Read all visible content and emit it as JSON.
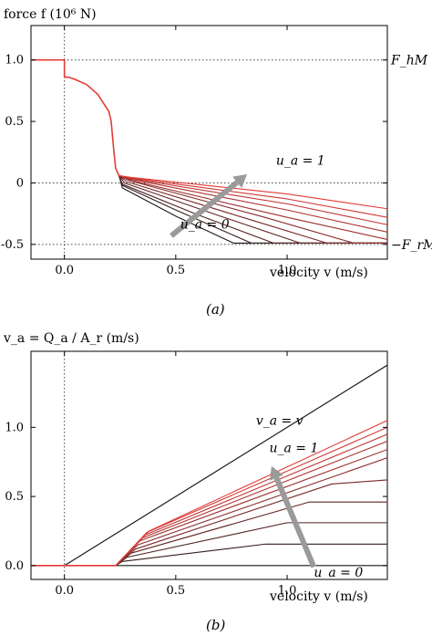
{
  "chart_data": [
    {
      "panel": "(a)",
      "type": "line",
      "ylabel": "force f (10⁶ N)",
      "xlabel": "velocity v (m/s)",
      "xlim": [
        -0.15,
        1.45
      ],
      "ylim": [
        -0.62,
        1.28
      ],
      "xticks": [
        0,
        0.5,
        1.0
      ],
      "xtick_labels": [
        "0.0",
        "0.5",
        "1.0"
      ],
      "yticks": [
        1.0,
        0.5,
        0,
        -0.5
      ],
      "ytick_labels": [
        "1.0",
        "0.5",
        "0",
        "-0.5"
      ],
      "right_labels": [
        {
          "text": "F_hM",
          "y": 1.0
        },
        {
          "text": "−F_rM",
          "y": -0.5
        }
      ],
      "reference_lines": {
        "horizontal": [
          1.0,
          0,
          -0.5
        ],
        "vertical": [
          0
        ]
      },
      "annotations": [
        {
          "text": "u_a = 1",
          "x": 0.95,
          "y": 0.15
        },
        {
          "text": "u_a = 0",
          "x": 0.52,
          "y": -0.37
        }
      ],
      "arrow": {
        "from": [
          0.48,
          -0.43
        ],
        "to": [
          0.82,
          0.07
        ]
      },
      "common_curve": {
        "x": [
          -0.15,
          0.0,
          0.0,
          0.02,
          0.05,
          0.1,
          0.15,
          0.2,
          0.21,
          0.22,
          0.23,
          0.245
        ],
        "y": [
          1.0,
          1.0,
          0.86,
          0.86,
          0.84,
          0.8,
          0.72,
          0.58,
          0.5,
          0.3,
          0.12,
          0.06
        ]
      },
      "family_curves": [
        {
          "x": [
            0.245,
            0.26,
            0.5,
            0.76,
            1.45
          ],
          "y": [
            0.06,
            -0.04,
            -0.27,
            -0.49,
            -0.49
          ]
        },
        {
          "x": [
            0.245,
            0.26,
            0.5,
            0.84,
            1.45
          ],
          "y": [
            0.06,
            -0.02,
            -0.22,
            -0.49,
            -0.49
          ]
        },
        {
          "x": [
            0.245,
            0.26,
            0.6,
            0.94,
            1.45
          ],
          "y": [
            0.06,
            -0.01,
            -0.26,
            -0.49,
            -0.49
          ]
        },
        {
          "x": [
            0.245,
            0.27,
            0.7,
            1.06,
            1.45
          ],
          "y": [
            0.06,
            0.0,
            -0.27,
            -0.49,
            -0.49
          ]
        },
        {
          "x": [
            0.245,
            0.28,
            0.8,
            1.18,
            1.45
          ],
          "y": [
            0.06,
            0.01,
            -0.28,
            -0.49,
            -0.49
          ]
        },
        {
          "x": [
            0.245,
            0.29,
            0.9,
            1.3,
            1.45
          ],
          "y": [
            0.06,
            0.02,
            -0.28,
            -0.49,
            -0.49
          ]
        },
        {
          "x": [
            0.245,
            0.3,
            1.0,
            1.45
          ],
          "y": [
            0.06,
            0.02,
            -0.28,
            -0.46
          ]
        },
        {
          "x": [
            0.245,
            0.3,
            1.0,
            1.45
          ],
          "y": [
            0.06,
            0.03,
            -0.22,
            -0.4
          ]
        },
        {
          "x": [
            0.245,
            0.3,
            1.0,
            1.45
          ],
          "y": [
            0.06,
            0.035,
            -0.17,
            -0.34
          ]
        },
        {
          "x": [
            0.245,
            0.3,
            1.0,
            1.45
          ],
          "y": [
            0.06,
            0.04,
            -0.13,
            -0.28
          ]
        },
        {
          "x": [
            0.245,
            0.3,
            1.0,
            1.45
          ],
          "y": [
            0.06,
            0.045,
            -0.09,
            -0.21
          ]
        }
      ],
      "colors": {
        "dark": "#1a1a1a",
        "red": "#e23b36",
        "arrow": "#9a9a9a",
        "dotted": "#444444"
      }
    },
    {
      "panel": "(b)",
      "type": "line",
      "ylabel": "v_a = Q_a / A_r (m/s)",
      "xlabel": "velocity v (m/s)",
      "xlim": [
        -0.15,
        1.45
      ],
      "ylim": [
        -0.1,
        1.55
      ],
      "xticks": [
        0,
        0.5,
        1.0
      ],
      "xtick_labels": [
        "0.0",
        "0.5",
        "1.0"
      ],
      "yticks": [
        0,
        0.5,
        1.0
      ],
      "ytick_labels": [
        "0.0",
        "0.5",
        "1.0"
      ],
      "reference_lines": {
        "vertical": [
          0
        ]
      },
      "annotations": [
        {
          "text": "v_a = v",
          "x": 0.86,
          "y": 1.02
        },
        {
          "text": "u_a = 1",
          "x": 0.92,
          "y": 0.82
        },
        {
          "text": "u_a = 0",
          "x": 1.12,
          "y": -0.08
        }
      ],
      "arrow": {
        "from": [
          1.12,
          -0.01
        ],
        "to": [
          0.93,
          0.72
        ]
      },
      "identity_line": {
        "x": [
          0.0,
          1.45
        ],
        "y": [
          0.0,
          1.45
        ]
      },
      "common_curve": {
        "x": [
          -0.15,
          0.23
        ],
        "y": [
          0.0,
          0.0
        ]
      },
      "family_curves": [
        {
          "x": [
            0.23,
            1.45
          ],
          "y": [
            0.0,
            0.0
          ]
        },
        {
          "x": [
            0.23,
            0.26,
            0.9,
            1.45
          ],
          "y": [
            0.0,
            0.03,
            0.155,
            0.155
          ]
        },
        {
          "x": [
            0.23,
            0.28,
            1.0,
            1.45
          ],
          "y": [
            0.0,
            0.06,
            0.31,
            0.31
          ]
        },
        {
          "x": [
            0.23,
            0.3,
            1.1,
            1.45
          ],
          "y": [
            0.0,
            0.09,
            0.46,
            0.46
          ]
        },
        {
          "x": [
            0.23,
            0.32,
            1.2,
            1.45
          ],
          "y": [
            0.0,
            0.12,
            0.59,
            0.62
          ]
        },
        {
          "x": [
            0.23,
            0.33,
            1.45
          ],
          "y": [
            0.0,
            0.15,
            0.78
          ]
        },
        {
          "x": [
            0.23,
            0.34,
            1.45
          ],
          "y": [
            0.0,
            0.18,
            0.84
          ]
        },
        {
          "x": [
            0.23,
            0.35,
            1.45
          ],
          "y": [
            0.0,
            0.2,
            0.9
          ]
        },
        {
          "x": [
            0.23,
            0.36,
            1.45
          ],
          "y": [
            0.0,
            0.22,
            0.95
          ]
        },
        {
          "x": [
            0.23,
            0.37,
            1.45
          ],
          "y": [
            0.0,
            0.24,
            1.0
          ]
        },
        {
          "x": [
            0.23,
            0.38,
            1.45
          ],
          "y": [
            0.0,
            0.25,
            1.05
          ]
        }
      ],
      "colors": {
        "dark": "#1a1a1a",
        "red": "#e23b36",
        "arrow": "#9a9a9a",
        "dotted": "#444444"
      }
    }
  ]
}
